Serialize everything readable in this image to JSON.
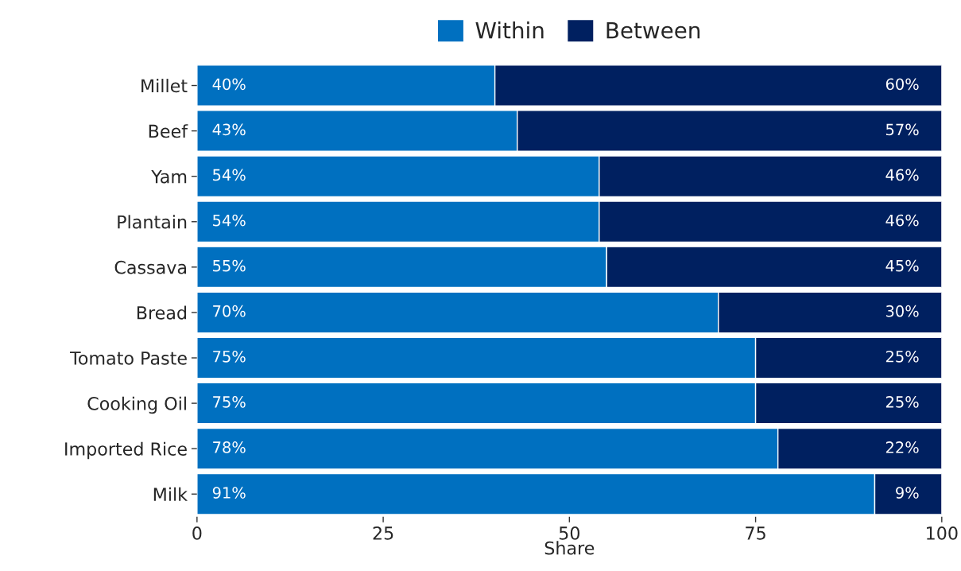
{
  "chart_data": {
    "type": "bar",
    "orientation": "horizontal",
    "stacked": true,
    "xlabel": "Share",
    "categories": [
      "Millet",
      "Beef",
      "Yam",
      "Plantain",
      "Cassava",
      "Bread",
      "Tomato Paste",
      "Cooking Oil",
      "Imported Rice",
      "Milk"
    ],
    "series": [
      {
        "name": "Within",
        "color": "#0070c0",
        "values": [
          40,
          43,
          54,
          54,
          55,
          70,
          75,
          75,
          78,
          91
        ],
        "value_labels": [
          "40%",
          "43%",
          "54%",
          "54%",
          "55%",
          "70%",
          "75%",
          "75%",
          "78%",
          "91%"
        ]
      },
      {
        "name": "Between",
        "color": "#002060",
        "values": [
          60,
          57,
          46,
          46,
          45,
          30,
          25,
          25,
          22,
          9
        ],
        "value_labels": [
          "60%",
          "57%",
          "46%",
          "46%",
          "45%",
          "30%",
          "25%",
          "25%",
          "22%",
          "9%"
        ]
      }
    ],
    "xlim": [
      0,
      100
    ],
    "xticks": [
      0,
      25,
      50,
      75,
      100
    ],
    "grid": false,
    "legend": "top"
  }
}
